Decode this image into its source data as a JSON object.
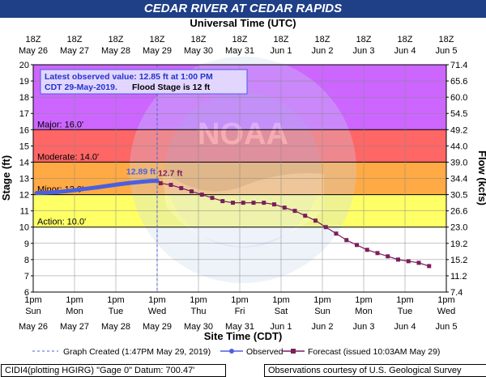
{
  "chart_data": {
    "type": "line",
    "title": "CEDAR RIVER AT CEDAR RAPIDS",
    "top_axis_label": "Universal Time (UTC)",
    "xlabel": "Site Time (CDT)",
    "ylabel": "Stage (ft)",
    "y2label": "Flow (kcfs)",
    "ylim": [
      6,
      20
    ],
    "y_ticks": [
      "6",
      "7",
      "8",
      "9",
      "10",
      "11",
      "12",
      "13",
      "14",
      "15",
      "16",
      "17",
      "18",
      "19",
      "20"
    ],
    "flow_ticks": [
      "7.4",
      "11.2",
      "15.2",
      "19.2",
      "23.0",
      "26.6",
      "30.5",
      "34.4",
      "39.0",
      "44.0",
      "49.2",
      "54.5",
      "60.0",
      "65.6",
      "71.4"
    ],
    "utc_ticks": [
      {
        "time": "18Z",
        "date": "May 26"
      },
      {
        "time": "18Z",
        "date": "May 27"
      },
      {
        "time": "18Z",
        "date": "May 28"
      },
      {
        "time": "18Z",
        "date": "May 29"
      },
      {
        "time": "18Z",
        "date": "May 30"
      },
      {
        "time": "18Z",
        "date": "May 31"
      },
      {
        "time": "18Z",
        "date": "Jun 1"
      },
      {
        "time": "18Z",
        "date": "Jun 2"
      },
      {
        "time": "18Z",
        "date": "Jun 3"
      },
      {
        "time": "18Z",
        "date": "Jun 4"
      },
      {
        "time": "18Z",
        "date": "Jun 5"
      }
    ],
    "local_ticks": [
      {
        "time": "1pm",
        "day": "Sun",
        "date": "May 26"
      },
      {
        "time": "1pm",
        "day": "Mon",
        "date": "May 27"
      },
      {
        "time": "1pm",
        "day": "Tue",
        "date": "May 28"
      },
      {
        "time": "1pm",
        "day": "Wed",
        "date": "May 29"
      },
      {
        "time": "1pm",
        "day": "Thu",
        "date": "May 30"
      },
      {
        "time": "1pm",
        "day": "Fri",
        "date": "May 31"
      },
      {
        "time": "1pm",
        "day": "Sat",
        "date": "Jun 1"
      },
      {
        "time": "1pm",
        "day": "Sun",
        "date": "Jun 2"
      },
      {
        "time": "1pm",
        "day": "Mon",
        "date": "Jun 3"
      },
      {
        "time": "1pm",
        "day": "Tue",
        "date": "Jun 4"
      },
      {
        "time": "1pm",
        "day": "Wed",
        "date": "Jun 5"
      }
    ],
    "flood_categories": [
      {
        "name": "Major",
        "label": "Major: 16.0'",
        "stage": 16.0,
        "color": "#cc66ff"
      },
      {
        "name": "Moderate",
        "label": "Moderate: 14.0'",
        "stage": 14.0,
        "color": "#ff6666"
      },
      {
        "name": "Minor",
        "label": "Minor: 12.0'",
        "stage": 12.0,
        "color": "#ffaa44"
      },
      {
        "name": "Action",
        "label": "Action: 10.0'",
        "stage": 10.0,
        "color": "#ffff66"
      },
      {
        "name": "Normal",
        "label": "",
        "stage": 6.0,
        "color": "#ffffff"
      }
    ],
    "graph_created_x": "May 29 1pm",
    "series": [
      {
        "name": "Observed",
        "color": "#4a5fe0",
        "peak_label": "12.89 ft",
        "points": [
          [
            "May 26 3pm",
            12.1
          ],
          [
            "May 26 9pm",
            12.12
          ],
          [
            "May 27 3am",
            12.16
          ],
          [
            "May 27 9am",
            12.22
          ],
          [
            "May 27 3pm",
            12.3
          ],
          [
            "May 27 9pm",
            12.38
          ],
          [
            "May 28 3am",
            12.46
          ],
          [
            "May 28 9am",
            12.55
          ],
          [
            "May 28 3pm",
            12.64
          ],
          [
            "May 28 9pm",
            12.72
          ],
          [
            "May 29 3am",
            12.78
          ],
          [
            "May 29 9am",
            12.84
          ],
          [
            "May 29 1pm",
            12.85
          ]
        ]
      },
      {
        "name": "Forecast",
        "color": "#7a1f5c",
        "start_label": "12.7 ft",
        "points": [
          [
            "May 29 3pm",
            12.7
          ],
          [
            "May 29 9pm",
            12.6
          ],
          [
            "May 30 3am",
            12.4
          ],
          [
            "May 30 9am",
            12.2
          ],
          [
            "May 30 3pm",
            12.0
          ],
          [
            "May 30 9pm",
            11.8
          ],
          [
            "May 31 3am",
            11.6
          ],
          [
            "May 31 9am",
            11.5
          ],
          [
            "May 31 3pm",
            11.5
          ],
          [
            "May 31 9pm",
            11.5
          ],
          [
            "Jun 1 3am",
            11.5
          ],
          [
            "Jun 1 9am",
            11.4
          ],
          [
            "Jun 1 3pm",
            11.2
          ],
          [
            "Jun 1 9pm",
            11.0
          ],
          [
            "Jun 2 3am",
            10.7
          ],
          [
            "Jun 2 9am",
            10.4
          ],
          [
            "Jun 2 3pm",
            10.0
          ],
          [
            "Jun 2 9pm",
            9.6
          ],
          [
            "Jun 3 3am",
            9.2
          ],
          [
            "Jun 3 9am",
            8.9
          ],
          [
            "Jun 3 3pm",
            8.6
          ],
          [
            "Jun 3 9pm",
            8.4
          ],
          [
            "Jun 4 3am",
            8.2
          ],
          [
            "Jun 4 9am",
            8.0
          ],
          [
            "Jun 4 3pm",
            7.9
          ],
          [
            "Jun 4 9pm",
            7.8
          ],
          [
            "Jun 5 3am",
            7.6
          ]
        ]
      }
    ],
    "annotation": {
      "line1": "Latest observed value: 12.85 ft at 1:00 PM",
      "line2": "CDT 29-May-2019.",
      "line2_bold": "Flood Stage is 12 ft"
    },
    "legend": {
      "graph_created": "Graph Created (1:47PM May 29, 2019)",
      "observed": "Observed",
      "forecast": "Forecast (issued 10:03AM May 29)"
    }
  },
  "footer": {
    "left": "CIDI4(plotting HGIRG) \"Gage 0\" Datum: 700.47'",
    "right": "Observations courtesy of U.S. Geological Survey"
  }
}
